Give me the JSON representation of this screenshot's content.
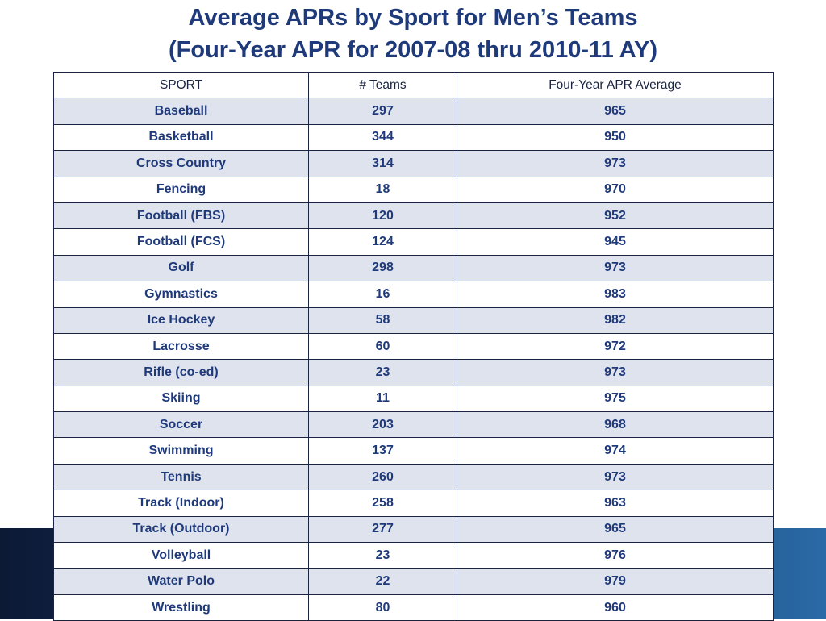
{
  "title": {
    "line1": "Average APRs by Sport for Men’s Teams",
    "line2": "(Four-Year APR for 2007-08 thru 2010-11 AY)"
  },
  "table": {
    "headers": [
      "SPORT",
      "# Teams",
      "Four-Year  APR Average"
    ],
    "rows": [
      [
        "Baseball",
        "297",
        "965"
      ],
      [
        "Basketball",
        "344",
        "950"
      ],
      [
        "Cross Country",
        "314",
        "973"
      ],
      [
        "Fencing",
        "18",
        "970"
      ],
      [
        "Football (FBS)",
        "120",
        "952"
      ],
      [
        "Football (FCS)",
        "124",
        "945"
      ],
      [
        "Golf",
        "298",
        "973"
      ],
      [
        "Gymnastics",
        "16",
        "983"
      ],
      [
        "Ice Hockey",
        "58",
        "982"
      ],
      [
        "Lacrosse",
        "60",
        "972"
      ],
      [
        "Rifle (co-ed)",
        "23",
        "973"
      ],
      [
        "Skiing",
        "11",
        "975"
      ],
      [
        "Soccer",
        "203",
        "968"
      ],
      [
        "Swimming",
        "137",
        "974"
      ],
      [
        "Tennis",
        "260",
        "973"
      ],
      [
        "Track (Indoor)",
        "258",
        "963"
      ],
      [
        "Track (Outdoor)",
        "277",
        "965"
      ],
      [
        "Volleyball",
        "23",
        "976"
      ],
      [
        "Water Polo",
        "22",
        "979"
      ],
      [
        "Wrestling",
        "80",
        "960"
      ]
    ]
  },
  "colors": {
    "title": "#1f3a7a",
    "row_alt": "#dfe3ee",
    "border": "#1a2440",
    "band": "#13305c"
  }
}
